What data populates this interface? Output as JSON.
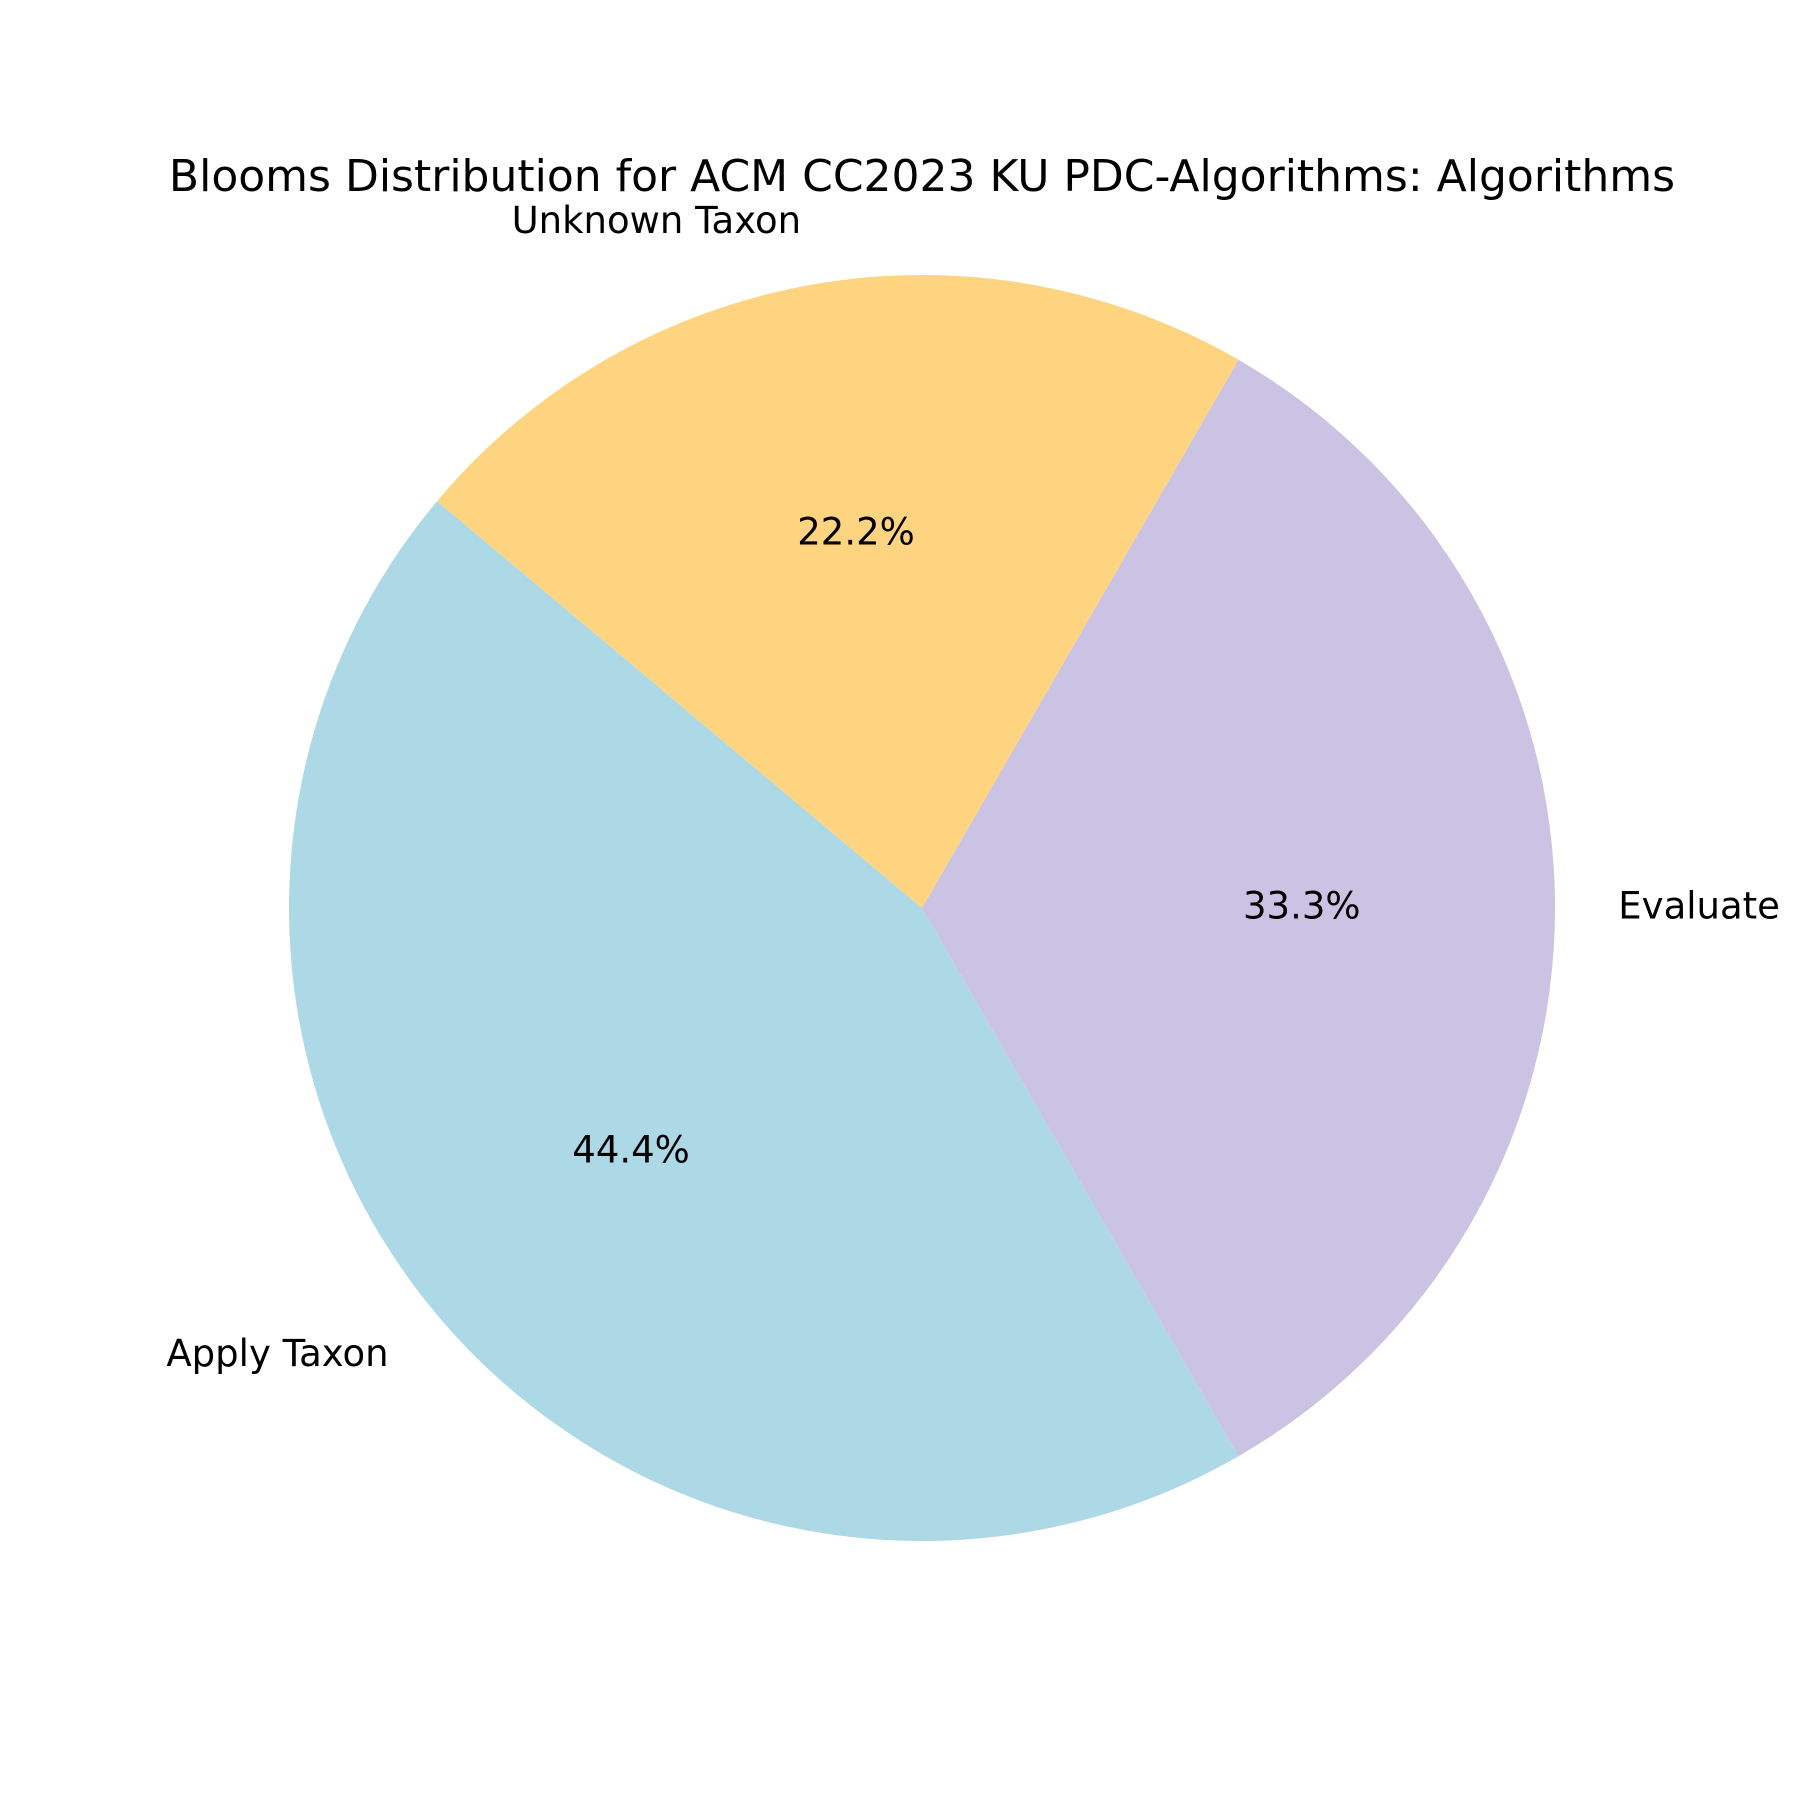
{
  "chart_data": {
    "type": "pie",
    "title": "Blooms Distribution for ACM CC2023 KU PDC-Algorithms: Algorithms",
    "categories": [
      "Apply Taxon",
      "Evaluate",
      "Unknown Taxon"
    ],
    "values": [
      44.4,
      33.3,
      22.2
    ],
    "percent_labels": [
      "44.4%",
      "33.3%",
      "22.2%"
    ],
    "colors": [
      "#add8e6",
      "#cbc3e3",
      "#fed480"
    ],
    "start_angle_deg": 140,
    "direction": "counterclockwise",
    "legend": "none"
  }
}
